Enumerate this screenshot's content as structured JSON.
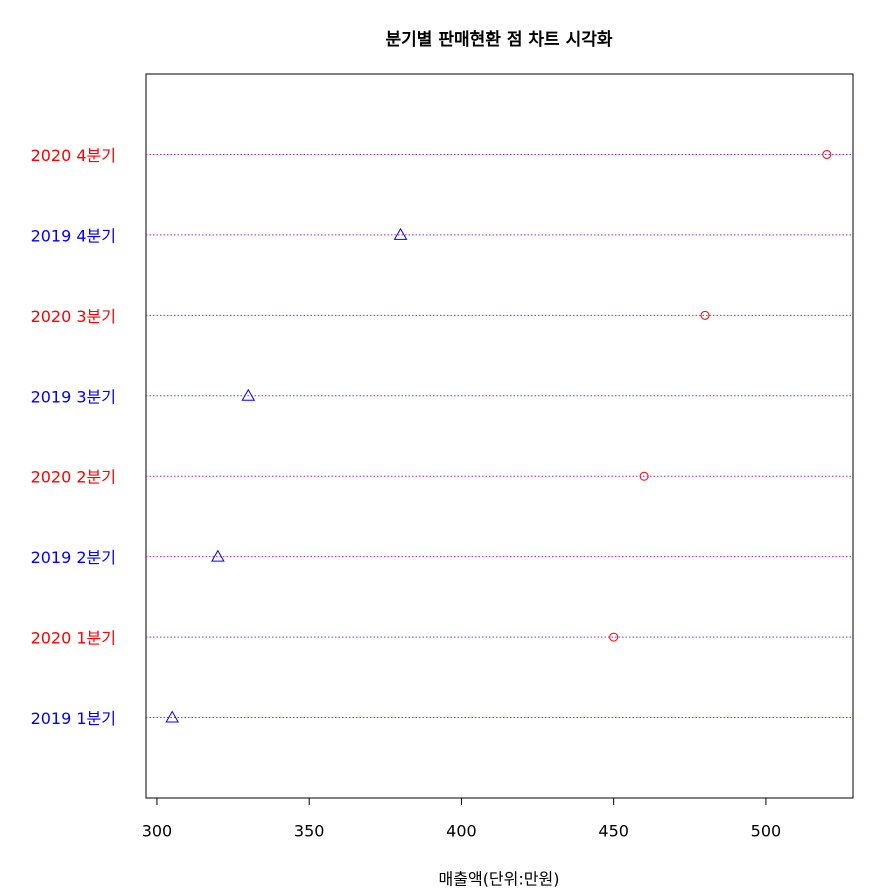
{
  "chart_data": {
    "type": "dot",
    "title": "분기별 판매현환 점 차트 시각화",
    "x_label": "매출액(단위:만원)",
    "categories": [
      "2019 1분기",
      "2020 1분기",
      "2019 2분기",
      "2020 2분기",
      "2019 3분기",
      "2020 3분기",
      "2019 4분기",
      "2020 4분기"
    ],
    "values": [
      305,
      450,
      320,
      460,
      330,
      480,
      380,
      520
    ],
    "colors": [
      "#0000ff",
      "#ff0000",
      "#0000ff",
      "#ff0000",
      "#0000ff",
      "#ff0000",
      "#0000ff",
      "#ff0000"
    ],
    "markers": [
      "triangle",
      "circle",
      "triangle",
      "circle",
      "triangle",
      "circle",
      "triangle",
      "circle"
    ],
    "line_color": "#a020f0",
    "xlim": [
      296.4,
      528.6
    ],
    "xticks": [
      300,
      350,
      400,
      450,
      500
    ]
  }
}
